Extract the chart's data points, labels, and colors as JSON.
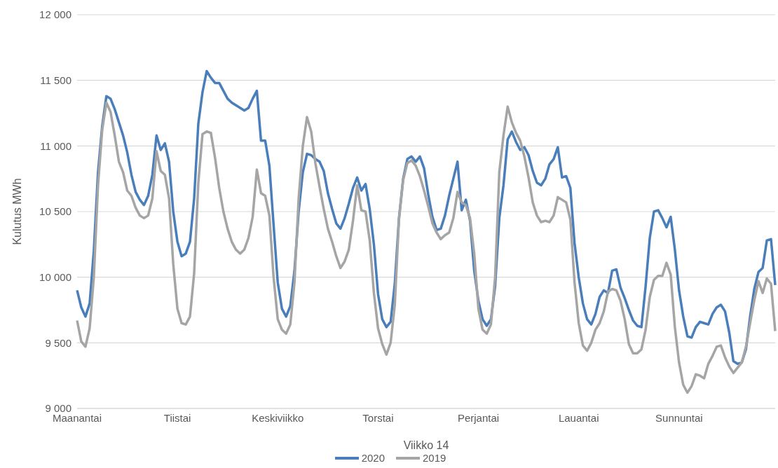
{
  "chart_data": {
    "type": "line",
    "xlabel": "Viikko 14",
    "ylabel": "Kulutus MWh",
    "categories": [
      "Maanantai",
      null,
      null,
      null,
      null,
      null,
      null,
      null,
      null,
      null,
      null,
      null,
      null,
      null,
      null,
      null,
      null,
      null,
      null,
      null,
      null,
      null,
      null,
      null,
      "Tiistai",
      null,
      null,
      null,
      null,
      null,
      null,
      null,
      null,
      null,
      null,
      null,
      null,
      null,
      null,
      null,
      null,
      null,
      null,
      null,
      null,
      null,
      null,
      null,
      "Keskiviikko",
      null,
      null,
      null,
      null,
      null,
      null,
      null,
      null,
      null,
      null,
      null,
      null,
      null,
      null,
      null,
      null,
      null,
      null,
      null,
      null,
      null,
      null,
      null,
      "Torstai",
      null,
      null,
      null,
      null,
      null,
      null,
      null,
      null,
      null,
      null,
      null,
      null,
      null,
      null,
      null,
      null,
      null,
      null,
      null,
      null,
      null,
      null,
      null,
      "Perjantai",
      null,
      null,
      null,
      null,
      null,
      null,
      null,
      null,
      null,
      null,
      null,
      null,
      null,
      null,
      null,
      null,
      null,
      null,
      null,
      null,
      null,
      null,
      null,
      "Lauantai",
      null,
      null,
      null,
      null,
      null,
      null,
      null,
      null,
      null,
      null,
      null,
      null,
      null,
      null,
      null,
      null,
      null,
      null,
      null,
      null,
      null,
      null,
      null,
      "Sunnuntai",
      null,
      null,
      null,
      null,
      null,
      null,
      null,
      null,
      null,
      null,
      null,
      null,
      null,
      null,
      null,
      null,
      null,
      null,
      null,
      null,
      null,
      null,
      null
    ],
    "series": [
      {
        "name": "2020",
        "color": "#4a7ebb",
        "values": [
          9900,
          9770,
          9700,
          9800,
          10200,
          10800,
          11150,
          11380,
          11360,
          11280,
          11180,
          11080,
          10950,
          10780,
          10650,
          10590,
          10550,
          10620,
          10780,
          11080,
          10970,
          11020,
          10880,
          10500,
          10270,
          10160,
          10180,
          10270,
          10600,
          11170,
          11410,
          11570,
          11520,
          11480,
          11480,
          11420,
          11360,
          11330,
          11310,
          11290,
          11270,
          11290,
          11360,
          11420,
          11040,
          11040,
          10850,
          10400,
          9960,
          9760,
          9700,
          9780,
          10050,
          10500,
          10800,
          10940,
          10930,
          10900,
          10880,
          10810,
          10640,
          10520,
          10410,
          10370,
          10450,
          10560,
          10680,
          10760,
          10660,
          10710,
          10520,
          10250,
          9870,
          9680,
          9620,
          9660,
          9950,
          10450,
          10750,
          10900,
          10920,
          10880,
          10920,
          10830,
          10630,
          10460,
          10360,
          10370,
          10470,
          10620,
          10750,
          10880,
          10510,
          10590,
          10430,
          10050,
          9820,
          9680,
          9630,
          9680,
          9930,
          10450,
          10700,
          11050,
          11110,
          11030,
          10970,
          10990,
          10930,
          10810,
          10720,
          10700,
          10750,
          10860,
          10900,
          10990,
          10760,
          10770,
          10680,
          10260,
          10000,
          9800,
          9680,
          9640,
          9720,
          9850,
          9900,
          9880,
          10050,
          10060,
          9920,
          9840,
          9750,
          9670,
          9630,
          9620,
          9930,
          10300,
          10500,
          10510,
          10450,
          10380,
          10460,
          10210,
          9900,
          9700,
          9550,
          9540,
          9620,
          9660,
          9650,
          9640,
          9720,
          9770,
          9790,
          9740,
          9580,
          9360,
          9340,
          9350,
          9450,
          9700,
          9910,
          10040,
          10070,
          10280,
          10290,
          9940
        ]
      },
      {
        "name": "2019",
        "color": "#a5a5a5",
        "values": [
          9670,
          9510,
          9470,
          9610,
          10000,
          10700,
          11120,
          11330,
          11260,
          11080,
          10880,
          10800,
          10660,
          10620,
          10530,
          10470,
          10450,
          10470,
          10600,
          10960,
          10810,
          10780,
          10600,
          10100,
          9760,
          9650,
          9640,
          9700,
          10030,
          10720,
          11090,
          11110,
          11100,
          10910,
          10680,
          10500,
          10370,
          10270,
          10210,
          10180,
          10210,
          10300,
          10460,
          10820,
          10640,
          10620,
          10470,
          10000,
          9680,
          9600,
          9570,
          9640,
          9960,
          10600,
          11000,
          11220,
          11110,
          10870,
          10690,
          10520,
          10370,
          10270,
          10160,
          10070,
          10120,
          10210,
          10430,
          10700,
          10510,
          10500,
          10280,
          9880,
          9610,
          9490,
          9410,
          9500,
          9790,
          10440,
          10740,
          10870,
          10890,
          10850,
          10770,
          10660,
          10540,
          10410,
          10340,
          10290,
          10320,
          10340,
          10450,
          10650,
          10570,
          10550,
          10450,
          10180,
          9760,
          9600,
          9570,
          9640,
          10000,
          10800,
          11080,
          11300,
          11180,
          11100,
          11040,
          10920,
          10760,
          10570,
          10470,
          10420,
          10430,
          10420,
          10470,
          10610,
          10590,
          10570,
          10440,
          9960,
          9650,
          9480,
          9440,
          9500,
          9600,
          9650,
          9740,
          9890,
          9910,
          9900,
          9820,
          9680,
          9490,
          9420,
          9420,
          9450,
          9600,
          9850,
          9980,
          10010,
          10010,
          10110,
          10020,
          9620,
          9350,
          9180,
          9120,
          9170,
          9260,
          9250,
          9230,
          9340,
          9400,
          9470,
          9480,
          9390,
          9320,
          9270,
          9310,
          9350,
          9470,
          9650,
          9825,
          9970,
          9880,
          9990,
          9950,
          9590
        ]
      }
    ],
    "ylim": [
      9000,
      12000
    ],
    "yticks": [
      {
        "value": 9000,
        "label": "9 000"
      },
      {
        "value": 9500,
        "label": "9 500"
      },
      {
        "value": 10000,
        "label": "10 000"
      },
      {
        "value": 10500,
        "label": "10 500"
      },
      {
        "value": 11000,
        "label": "11 000"
      },
      {
        "value": 11500,
        "label": "11 500"
      },
      {
        "value": 12000,
        "label": "12 000"
      }
    ],
    "grid": "y",
    "legend": "bottom",
    "marker": "none",
    "line_style": "solid"
  }
}
